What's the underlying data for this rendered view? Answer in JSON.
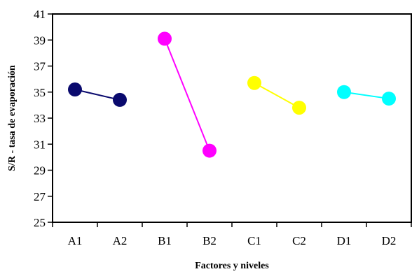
{
  "chart_data": {
    "type": "line",
    "title": "",
    "xlabel": "Factores y niveles",
    "ylabel": "S/R - tasa de evaporación",
    "categories": [
      "A1",
      "A2",
      "B1",
      "B2",
      "C1",
      "C2",
      "D1",
      "D2"
    ],
    "ylim": [
      25,
      41
    ],
    "yticks": [
      25,
      27,
      29,
      31,
      33,
      35,
      37,
      39,
      41
    ],
    "grid": false,
    "legend": "none",
    "series": [
      {
        "points": [
          [
            "A1",
            35.2
          ],
          [
            "A2",
            34.4
          ]
        ],
        "color": "#0a0a6e"
      },
      {
        "points": [
          [
            "B1",
            39.1
          ],
          [
            "B2",
            30.5
          ]
        ],
        "color": "#ff00ff"
      },
      {
        "points": [
          [
            "C1",
            35.7
          ],
          [
            "C2",
            33.8
          ]
        ],
        "color": "#ffff00"
      },
      {
        "points": [
          [
            "D1",
            35.0
          ],
          [
            "D2",
            34.5
          ]
        ],
        "color": "#00ffff"
      }
    ]
  }
}
